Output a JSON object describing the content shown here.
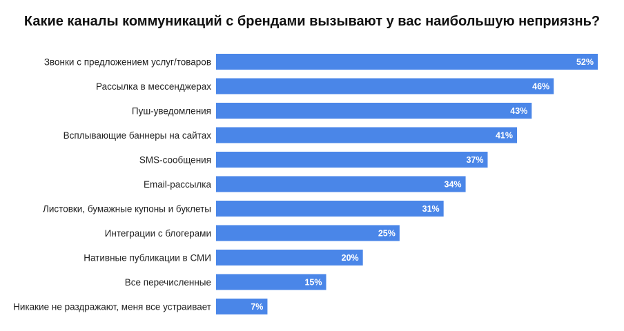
{
  "chart_data": {
    "type": "bar",
    "orientation": "horizontal",
    "title": "Какие каналы коммуникаций с брендами вызывают у вас наибольшую неприязнь?",
    "categories": [
      "Звонки с предложением услуг/товаров",
      "Рассылка в мессенджерах",
      "Пуш-уведомления",
      "Всплывающие баннеры на сайтах",
      "SMS-сообщения",
      "Email-рассылка",
      "Листовки, бумажные купоны и буклеты",
      "Интеграции с блогерами",
      "Нативные публикации в СМИ",
      "Все перечисленные",
      "Никакие не раздражают, меня все устраивает"
    ],
    "values": [
      52,
      46,
      43,
      41,
      37,
      34,
      31,
      25,
      20,
      15,
      7
    ],
    "value_labels": [
      "52%",
      "46%",
      "43%",
      "41%",
      "37%",
      "34%",
      "31%",
      "25%",
      "20%",
      "15%",
      "7%"
    ],
    "unit": "%",
    "xlim": [
      0,
      52
    ],
    "grid": false,
    "legend": "none",
    "bar_color": "#4A86E8"
  }
}
